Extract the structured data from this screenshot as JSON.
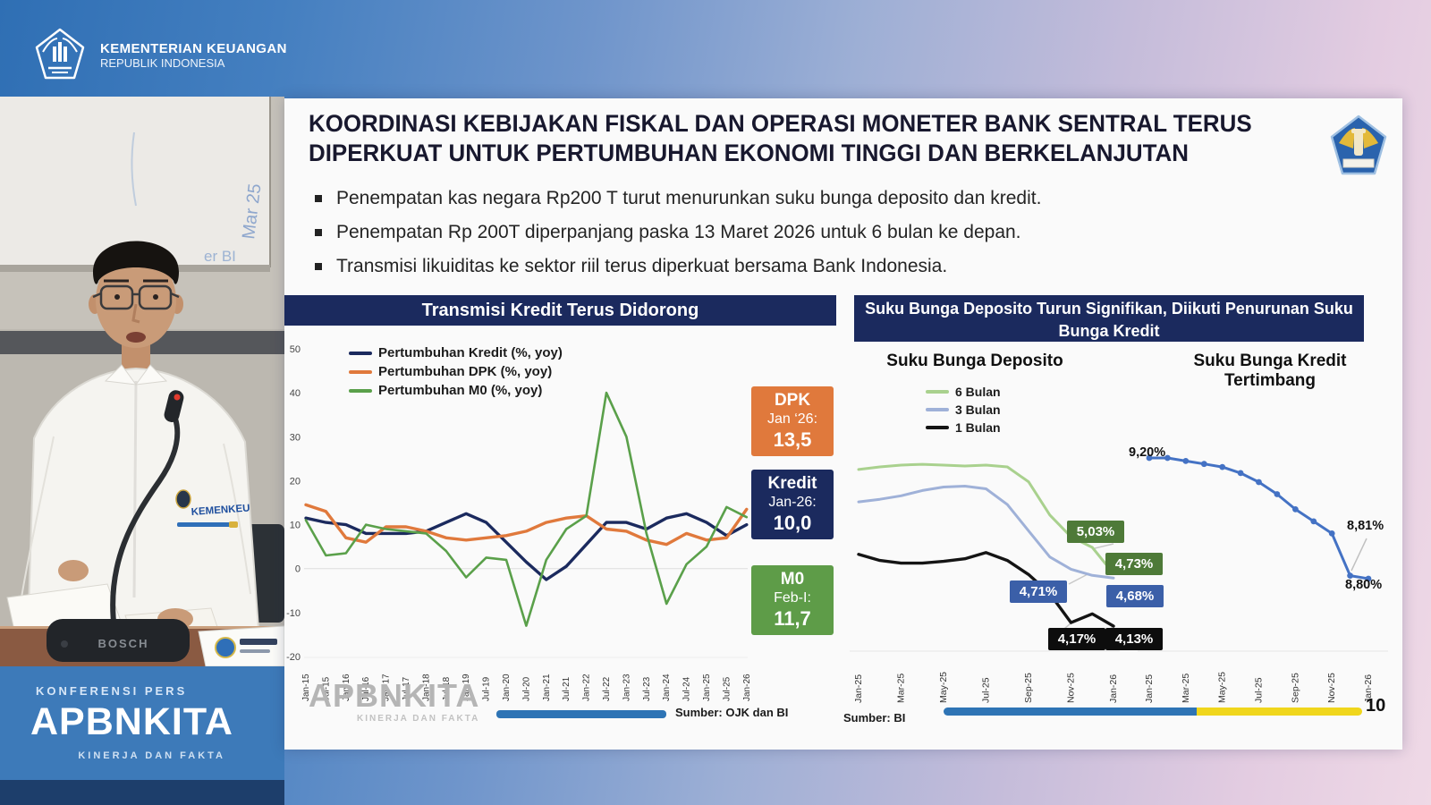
{
  "broadcast": {
    "agency_line1": "KEMENTERIAN KEUANGAN",
    "agency_line2": "REPUBLIK INDONESIA",
    "kicker": "KONFERENSI PERS",
    "brand": "APBNKITA",
    "tagline": "KINERJA DAN FAKTA"
  },
  "scene": {
    "whiteboard_text": "Mar 25",
    "whiteboard_text2": "er  BI",
    "shirt_badge": "KEMENKEU",
    "mic_brand": "BOSCH"
  },
  "slide": {
    "title_line1": "KOORDINASI KEBIJAKAN FISKAL DAN OPERASI MONETER BANK SENTRAL TERUS",
    "title_line2": "DIPERKUAT UNTUK PERTUMBUHAN EKONOMI TINGGI DAN BERKELANJUTAN",
    "bullets": [
      "Penempatan kas negara Rp200 T turut menurunkan suku bunga deposito dan kredit.",
      "Penempatan Rp 200T diperpanjang paska 13 Maret 2026 untuk 6 bulan ke depan.",
      "Transmisi likuiditas ke sektor riil terus diperkuat bersama Bank Indonesia."
    ],
    "page_number": "10",
    "left_panel": {
      "header": "Transmisi Kredit Terus Didorong",
      "watermark": "APBNKITA",
      "watermark_sub": "KINERJA DAN FAKTA",
      "source": "Sumber: OJK dan BI",
      "callouts": [
        {
          "title": "DPK",
          "period": "Jan ‘26:",
          "value": "13,5",
          "color": "#e0793c"
        },
        {
          "title": "Kredit",
          "period": "Jan-26:",
          "value": "10,0",
          "color": "#1b2a5e"
        },
        {
          "title": "M0",
          "period": "Feb-I:",
          "value": "11,7",
          "color": "#5e9c48"
        }
      ]
    },
    "right_panel": {
      "header_line1": "Suku Bunga Deposito Turun Signifikan, Diikuti Penurunan Suku",
      "header_line2": "Bunga Kredit",
      "deposito_title": "Suku Bunga Deposito",
      "kredit_title_line1": "Suku Bunga Kredit",
      "kredit_title_line2": "Tertimbang",
      "source": "Sumber: BI"
    }
  },
  "chart_data": [
    {
      "type": "line",
      "title": "Transmisi Kredit Terus Didorong",
      "x": [
        "Jan-15",
        "Jul-15",
        "Jan-16",
        "Jul-16",
        "Jan-17",
        "Jul-17",
        "Jan-18",
        "Jul-18",
        "Jan-19",
        "Jul-19",
        "Jan-20",
        "Jul-20",
        "Jan-21",
        "Jul-21",
        "Jan-22",
        "Jul-22",
        "Jan-23",
        "Jul-23",
        "Jan-24",
        "Jul-24",
        "Jan-25",
        "Jul-25",
        "Jan-26"
      ],
      "series": [
        {
          "name": "Pertumbuhan Kredit (%, yoy)",
          "color": "#1b2a5e",
          "values": [
            11.5,
            10.5,
            10,
            8,
            8,
            8,
            8.5,
            10.5,
            12.5,
            10.5,
            6,
            1.5,
            -2.5,
            0.5,
            5.5,
            10.5,
            10.5,
            9,
            11.5,
            12.5,
            10.5,
            7.5,
            10
          ]
        },
        {
          "name": "Pertumbuhan DPK (%, yoy)",
          "color": "#e0793c",
          "values": [
            14.5,
            13,
            7,
            6,
            9.5,
            9.5,
            8.5,
            7,
            6.5,
            7,
            7.5,
            8.5,
            10.5,
            11.5,
            12,
            9,
            8.5,
            6.5,
            5.5,
            8,
            6.5,
            7,
            13.5
          ]
        },
        {
          "name": "Pertumbuhan M0 (%, yoy)",
          "color": "#5aa04a",
          "values": [
            11,
            3,
            3.5,
            10,
            9,
            8.5,
            8,
            4,
            -2,
            2.5,
            2,
            -13,
            2,
            9,
            12,
            40,
            30,
            8,
            -8,
            1,
            5,
            14,
            11.7
          ]
        }
      ],
      "ylim": [
        -20,
        50
      ],
      "yticks": [
        50,
        40,
        30,
        20,
        10,
        0,
        -10,
        -20
      ],
      "grid": false,
      "legend_position": "top-left",
      "latest_values": {
        "DPK Jan ‘26": 13.5,
        "Kredit Jan-26": 10.0,
        "M0 Feb-I": 11.7
      }
    },
    {
      "type": "line",
      "title": "Suku Bunga Deposito",
      "x": [
        "Jan-25",
        "Feb-25",
        "Mar-25",
        "Apr-25",
        "May-25",
        "Jun-25",
        "Jul-25",
        "Aug-25",
        "Sep-25",
        "Oct-25",
        "Nov-25",
        "Dec-25",
        "Jan-26"
      ],
      "x_ticks": [
        "Jan-25",
        "Mar-25",
        "May-25",
        "Jul-25",
        "Sep-25",
        "Nov-25",
        "Jan-26"
      ],
      "series": [
        {
          "name": "6 Bulan",
          "color": "#a9d18e",
          "values": [
            5.92,
            5.95,
            5.97,
            5.98,
            5.97,
            5.96,
            5.97,
            5.95,
            5.78,
            5.4,
            5.15,
            5.03,
            4.73
          ]
        },
        {
          "name": "3 Bulan",
          "color": "#9fb1d8",
          "values": [
            5.55,
            5.58,
            5.62,
            5.68,
            5.72,
            5.73,
            5.7,
            5.52,
            5.22,
            4.92,
            4.78,
            4.71,
            4.68
          ]
        },
        {
          "name": "1 Bulan",
          "color": "#141414",
          "values": [
            4.95,
            4.88,
            4.85,
            4.85,
            4.87,
            4.9,
            4.97,
            4.88,
            4.72,
            4.5,
            4.17,
            4.27,
            4.13
          ]
        }
      ],
      "ylim": [
        3.9,
        6.2
      ],
      "grid": false,
      "legend_position": "top-left",
      "callouts": [
        {
          "series": "6 Bulan",
          "text": "5,03%",
          "bg": "#4e7a38"
        },
        {
          "series": "6 Bulan",
          "text": "4,73%",
          "bg": "#4e7a38"
        },
        {
          "series": "3 Bulan",
          "text": "4,71%",
          "bg": "#3b5fa8"
        },
        {
          "series": "3 Bulan",
          "text": "4,68%",
          "bg": "#3b5fa8"
        },
        {
          "series": "1 Bulan",
          "text": "4,17%",
          "bg": "#0d0d0d"
        },
        {
          "series": "1 Bulan",
          "text": "4,13%",
          "bg": "#0d0d0d"
        }
      ]
    },
    {
      "type": "line",
      "title": "Suku Bunga Kredit Tertimbang",
      "x": [
        "Jan-25",
        "Feb-25",
        "Mar-25",
        "Apr-25",
        "May-25",
        "Jun-25",
        "Jul-25",
        "Aug-25",
        "Sep-25",
        "Oct-25",
        "Nov-25",
        "Dec-25",
        "Jan-26"
      ],
      "x_ticks": [
        "Jan-25",
        "Mar-25",
        "May-25",
        "Jul-25",
        "Sep-25",
        "Nov-25",
        "Jan-26"
      ],
      "series": [
        {
          "name": "Suku Bunga Kredit Tertimbang",
          "color": "#4472c4",
          "marker": true,
          "values": [
            9.2,
            9.2,
            9.19,
            9.18,
            9.17,
            9.15,
            9.12,
            9.08,
            9.03,
            8.99,
            8.95,
            8.81,
            8.8
          ]
        }
      ],
      "ylim": [
        8.6,
        9.4
      ],
      "grid": false,
      "callouts": [
        {
          "text": "9,20%"
        },
        {
          "text": "8,81%"
        },
        {
          "text": "8,80%"
        }
      ]
    }
  ],
  "colors": {
    "header_navy": "#1b2a5e",
    "bar_blue": "#2e74b5",
    "bar_yellow": "#f0d61c",
    "panel_blue": "#3d7ab9"
  }
}
